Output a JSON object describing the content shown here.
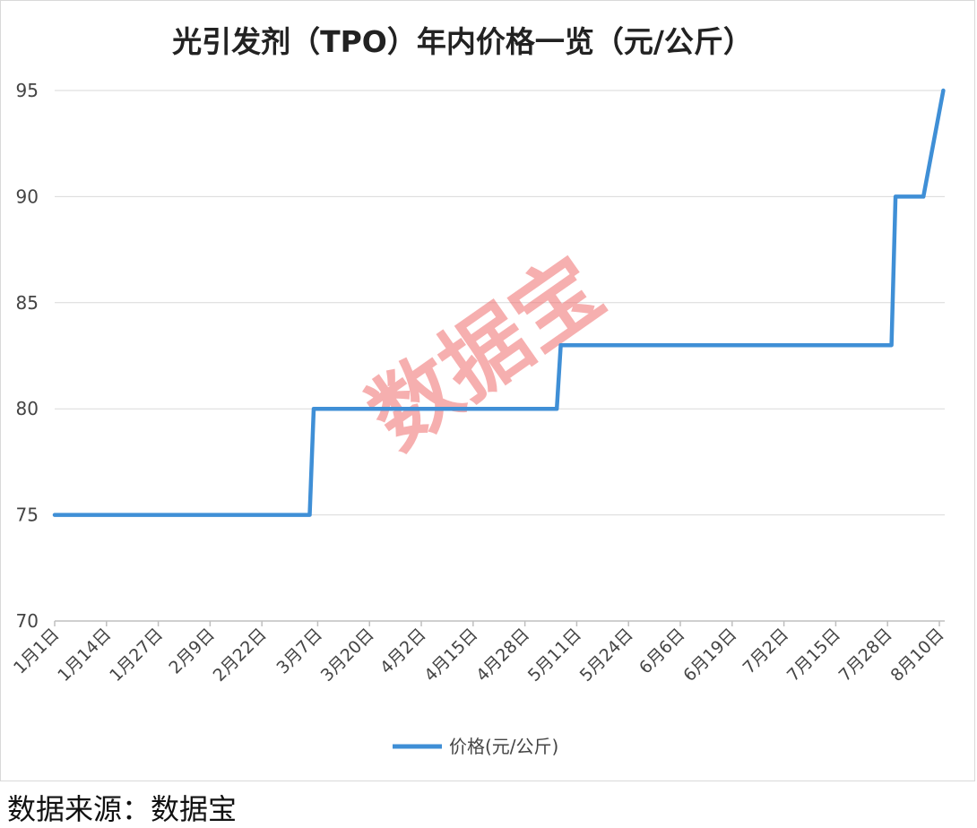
{
  "chart_data": {
    "type": "line",
    "title": "光引发剂（TPO）年内价格一览（元/公斤）",
    "xlabel": "",
    "ylabel": "",
    "ylim": [
      70,
      95
    ],
    "yticks": [
      70,
      75,
      80,
      85,
      90,
      95
    ],
    "xticks": [
      "1月1日",
      "1月14日",
      "1月27日",
      "2月9日",
      "2月22日",
      "3月7日",
      "3月20日",
      "4月2日",
      "4月15日",
      "4月28日",
      "5月11日",
      "5月24日",
      "6月6日",
      "6月19日",
      "7月2日",
      "7月15日",
      "7月28日",
      "8月10日"
    ],
    "grid": true,
    "legend_position": "bottom",
    "series": [
      {
        "name": "价格(元/公斤)",
        "color": "#3f8fd6",
        "points": [
          {
            "x": "1月1日",
            "y": 75
          },
          {
            "x": "3月5日",
            "y": 75
          },
          {
            "x": "3月6日",
            "y": 80
          },
          {
            "x": "5月6日",
            "y": 80
          },
          {
            "x": "5月7日",
            "y": 83
          },
          {
            "x": "7月29日",
            "y": 83
          },
          {
            "x": "7月30日",
            "y": 90
          },
          {
            "x": "8月6日",
            "y": 90
          },
          {
            "x": "8月11日",
            "y": 95
          }
        ]
      }
    ]
  },
  "watermark": "数据宝",
  "source": "数据来源：数据宝"
}
